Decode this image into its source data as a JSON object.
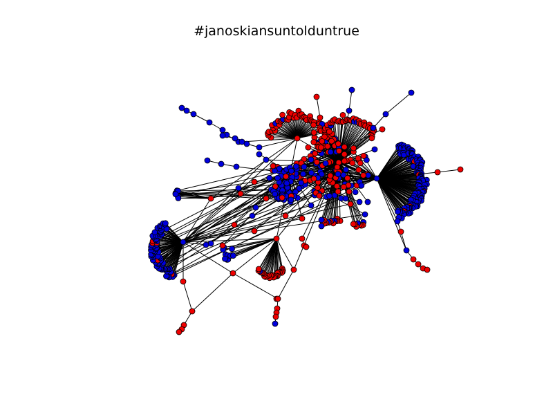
{
  "title": "#janoskiansuntolduntrue",
  "graph": {
    "node_types": [
      "red",
      "blue"
    ],
    "colors": {
      "red": "#ee0000",
      "blue": "#0000dd",
      "edge": "#000000",
      "node_stroke": "#000000"
    }
  }
}
